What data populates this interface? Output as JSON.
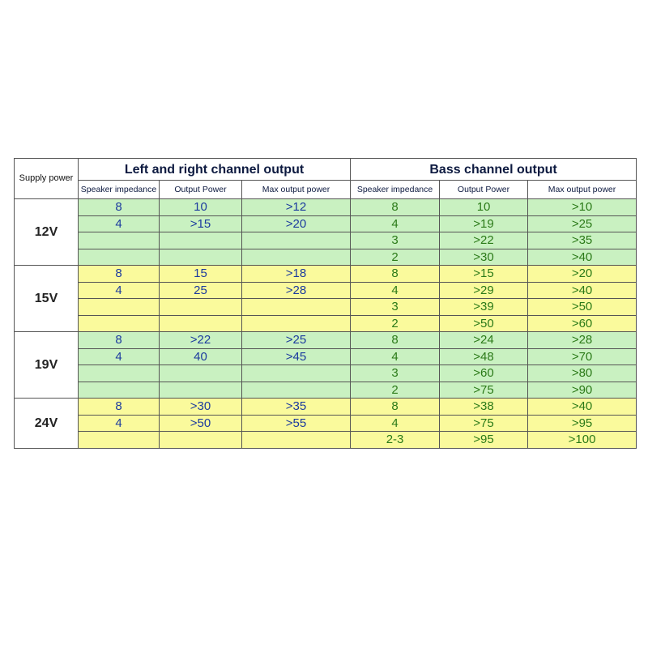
{
  "header": {
    "supply": "Supply power",
    "lr_title": "Left and right channel output",
    "bass_title": "Bass channel output",
    "columns": [
      "Speaker impedance",
      "Output Power",
      "Max output power",
      "Speaker impedance",
      "Output Power",
      "Max output power"
    ]
  },
  "groups": [
    {
      "supply": "12V",
      "lr": [
        [
          "8",
          "10",
          ">12"
        ],
        [
          "4",
          ">15",
          ">20"
        ]
      ],
      "bass": [
        [
          "8",
          "10",
          ">10"
        ],
        [
          "4",
          ">19",
          ">25"
        ],
        [
          "3",
          ">22",
          ">35"
        ],
        [
          "2",
          ">30",
          ">40"
        ]
      ]
    },
    {
      "supply": "15V",
      "lr": [
        [
          "8",
          "15",
          ">18"
        ],
        [
          "4",
          "25",
          ">28"
        ]
      ],
      "bass": [
        [
          "8",
          ">15",
          ">20"
        ],
        [
          "4",
          ">29",
          ">40"
        ],
        [
          "3",
          ">39",
          ">50"
        ],
        [
          "2",
          ">50",
          ">60"
        ]
      ]
    },
    {
      "supply": "19V",
      "lr": [
        [
          "8",
          ">22",
          ">25"
        ],
        [
          "4",
          "40",
          ">45"
        ]
      ],
      "bass": [
        [
          "8",
          ">24",
          ">28"
        ],
        [
          "4",
          ">48",
          ">70"
        ],
        [
          "3",
          ">60",
          ">80"
        ],
        [
          "2",
          ">75",
          ">90"
        ]
      ]
    },
    {
      "supply": "24V",
      "lr": [
        [
          "8",
          ">30",
          ">35"
        ],
        [
          "4",
          ">50",
          ">55"
        ]
      ],
      "bass": [
        [
          "8",
          ">38",
          ">40"
        ],
        [
          "4",
          ">75",
          ">95"
        ],
        [
          "2-3",
          ">95",
          ">100"
        ]
      ]
    }
  ]
}
